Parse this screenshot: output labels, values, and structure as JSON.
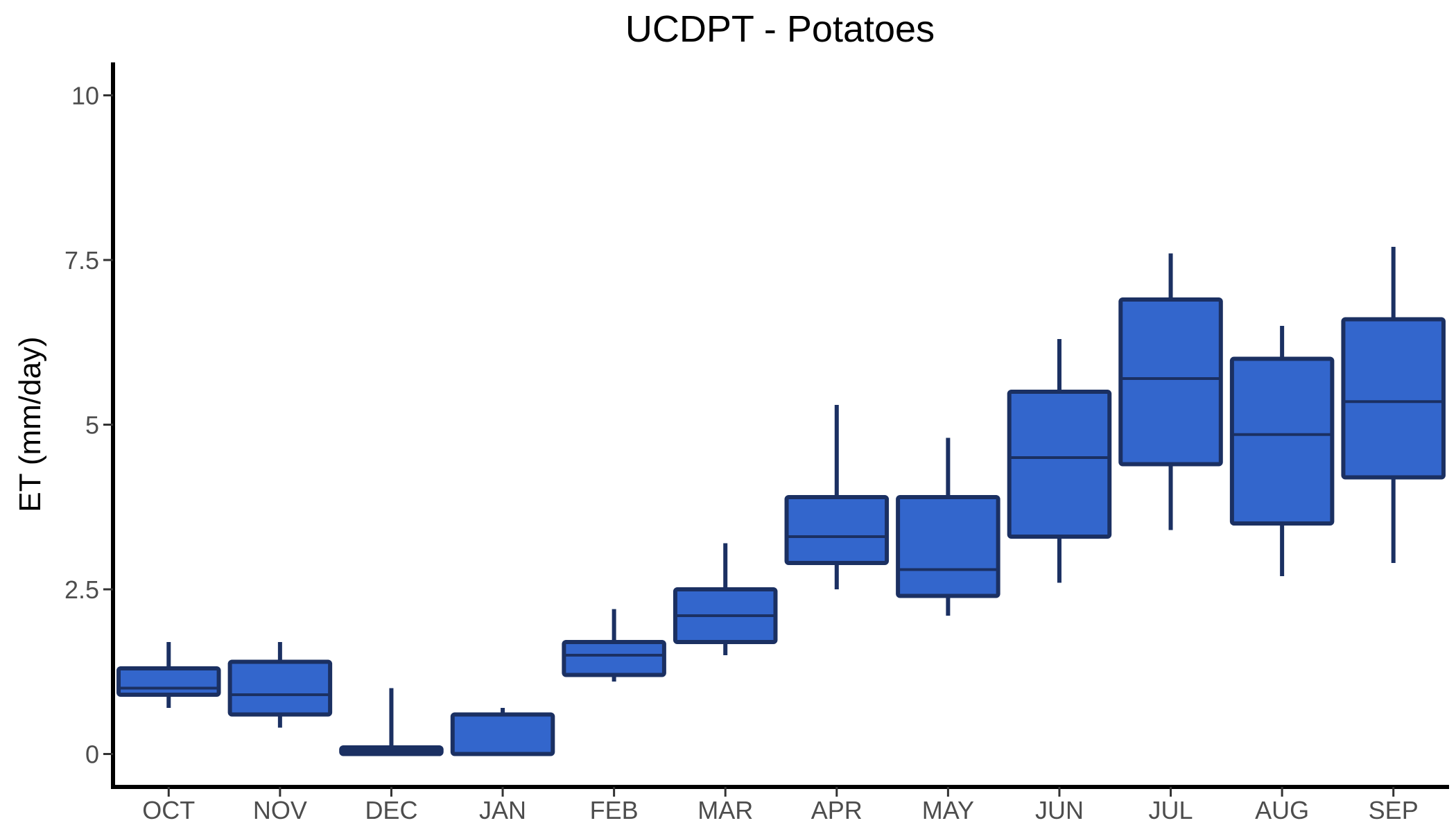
{
  "chart_data": {
    "type": "boxplot",
    "title": "UCDPT - Potatoes",
    "xlabel": "",
    "ylabel": "ET (mm/day)",
    "ylim": [
      -0.5,
      10.5
    ],
    "yticks": [
      0,
      2.5,
      5,
      7.5,
      10
    ],
    "ytick_labels": [
      "0",
      "2.5",
      "5",
      "7.5",
      "10"
    ],
    "grid": false,
    "fill_color": "#3366cc",
    "line_color": "#1b3062",
    "categories": [
      "OCT",
      "NOV",
      "DEC",
      "JAN",
      "FEB",
      "MAR",
      "APR",
      "MAY",
      "JUN",
      "JUL",
      "AUG",
      "SEP"
    ],
    "boxes": [
      {
        "min": 0.7,
        "q1": 0.9,
        "median": 1.0,
        "q3": 1.3,
        "max": 1.7
      },
      {
        "min": 0.4,
        "q1": 0.6,
        "median": 0.9,
        "q3": 1.4,
        "max": 1.7
      },
      {
        "min": 0.0,
        "q1": 0.0,
        "median": 0.05,
        "q3": 0.1,
        "max": 1.0
      },
      {
        "min": 0.0,
        "q1": 0.0,
        "median": 0.0,
        "q3": 0.6,
        "max": 0.7
      },
      {
        "min": 1.1,
        "q1": 1.2,
        "median": 1.5,
        "q3": 1.7,
        "max": 2.2
      },
      {
        "min": 1.5,
        "q1": 1.7,
        "median": 2.1,
        "q3": 2.5,
        "max": 3.2
      },
      {
        "min": 2.5,
        "q1": 2.9,
        "median": 3.3,
        "q3": 3.9,
        "max": 5.3
      },
      {
        "min": 2.1,
        "q1": 2.4,
        "median": 2.8,
        "q3": 3.9,
        "max": 4.8
      },
      {
        "min": 2.6,
        "q1": 3.3,
        "median": 4.5,
        "q3": 5.5,
        "max": 6.3
      },
      {
        "min": 3.4,
        "q1": 4.4,
        "median": 5.7,
        "q3": 6.9,
        "max": 7.6
      },
      {
        "min": 2.7,
        "q1": 3.5,
        "median": 4.85,
        "q3": 6.0,
        "max": 6.5
      },
      {
        "min": 2.9,
        "q1": 4.2,
        "median": 5.35,
        "q3": 6.6,
        "max": 7.7
      }
    ]
  }
}
